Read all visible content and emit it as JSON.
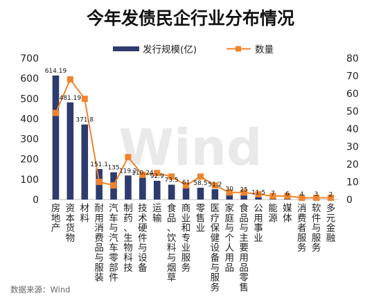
{
  "chart_data": {
    "type": "bar+line",
    "title": "今年发债民企行业分布情况",
    "categories": [
      "房地产",
      "资本货物",
      "材料",
      "耐用消费品与服装",
      "汽车与汽车零部件",
      "制药、生物科技",
      "技术硬件与设备",
      "运输",
      "食品、饮料与烟草",
      "商业和专业服务",
      "零售业",
      "医疗保健设备与服务",
      "家庭与个人用品",
      "食品与主要用品零售",
      "公用事业",
      "能源",
      "媒体",
      "消费者服务",
      "软件与服务",
      "多元金融"
    ],
    "series": [
      {
        "name": "发行规模(亿)",
        "type": "bar",
        "axis": "left",
        "color": "#2e3b6e",
        "values": [
          614.19,
          481.19,
          371.8,
          151.1,
          135,
          119.2,
          110.24,
          92.9,
          73.5,
          61,
          58.5,
          51.2,
          30,
          25,
          11.5,
          7,
          6,
          4,
          3,
          2
        ],
        "labels": [
          "614.19",
          "481.19",
          "371.8",
          "151.1",
          "135",
          "119.2",
          "110.24",
          "92.9",
          "73.5",
          "61",
          "58.5",
          "51.2",
          "30",
          "25",
          "11.5",
          "7",
          "6",
          "4",
          "3",
          "2"
        ]
      },
      {
        "name": "数量",
        "type": "line",
        "axis": "right",
        "color": "#f0842c",
        "values": [
          49,
          68,
          57,
          10,
          8,
          24,
          14,
          15,
          13,
          8,
          13,
          8,
          4,
          4,
          3,
          2,
          2,
          1,
          1,
          1
        ]
      }
    ],
    "yleft": {
      "ticks": [
        "0",
        "100",
        "200",
        "300",
        "400",
        "500",
        "600",
        "700"
      ],
      "lim": [
        0,
        700
      ]
    },
    "yright": {
      "ticks": [
        "0",
        "10",
        "20",
        "30",
        "40",
        "50",
        "60",
        "70",
        "80"
      ],
      "lim": [
        0,
        80
      ]
    },
    "legend": {
      "placement": "top-center"
    },
    "grid": false,
    "watermark": "Wind",
    "source": "数据来源：Wind"
  }
}
